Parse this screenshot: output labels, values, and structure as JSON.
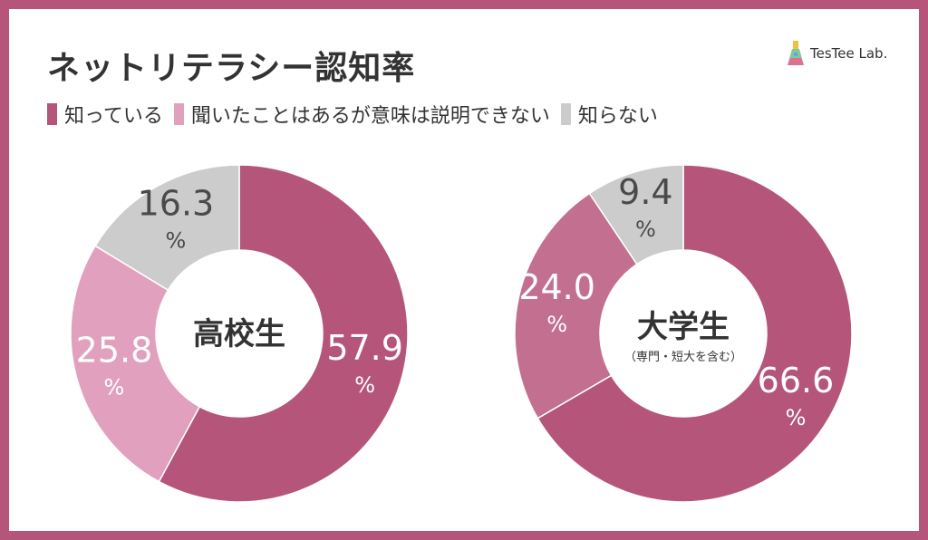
{
  "title": "ネットリテラシー認知率",
  "brand": "TesTee Lab.",
  "legend": [
    {
      "label": "知っている",
      "color": "#b5557a"
    },
    {
      "label": "聞いたことはあるが意味は説明できない",
      "color": "#e0a0be"
    },
    {
      "label": "知らない",
      "color": "#cccccc"
    }
  ],
  "chart_data": [
    {
      "type": "pie",
      "center_label": "高校生",
      "center_sublabel": "",
      "categories": [
        "知っている",
        "聞いたことはあるが意味は説明できない",
        "知らない"
      ],
      "values": [
        57.9,
        25.8,
        16.3
      ],
      "colors": [
        "#b5557a",
        "#e0a0be",
        "#cccccc"
      ],
      "data_labels": [
        "57.9",
        "25.8",
        "16.3"
      ],
      "unit": "%",
      "label_colors": [
        "#ffffff",
        "#ffffff",
        "#4a4a4a"
      ]
    },
    {
      "type": "pie",
      "center_label": "大学生",
      "center_sublabel": "（専門・短大を含む）",
      "categories": [
        "知っている",
        "聞いたことはあるが意味は説明できない",
        "知らない"
      ],
      "values": [
        66.6,
        24.0,
        9.4
      ],
      "colors": [
        "#b5557a",
        "#c26f90",
        "#cccccc"
      ],
      "data_labels": [
        "66.6",
        "24.0",
        "9.4"
      ],
      "unit": "%",
      "label_colors": [
        "#ffffff",
        "#ffffff",
        "#4a4a4a"
      ]
    }
  ]
}
